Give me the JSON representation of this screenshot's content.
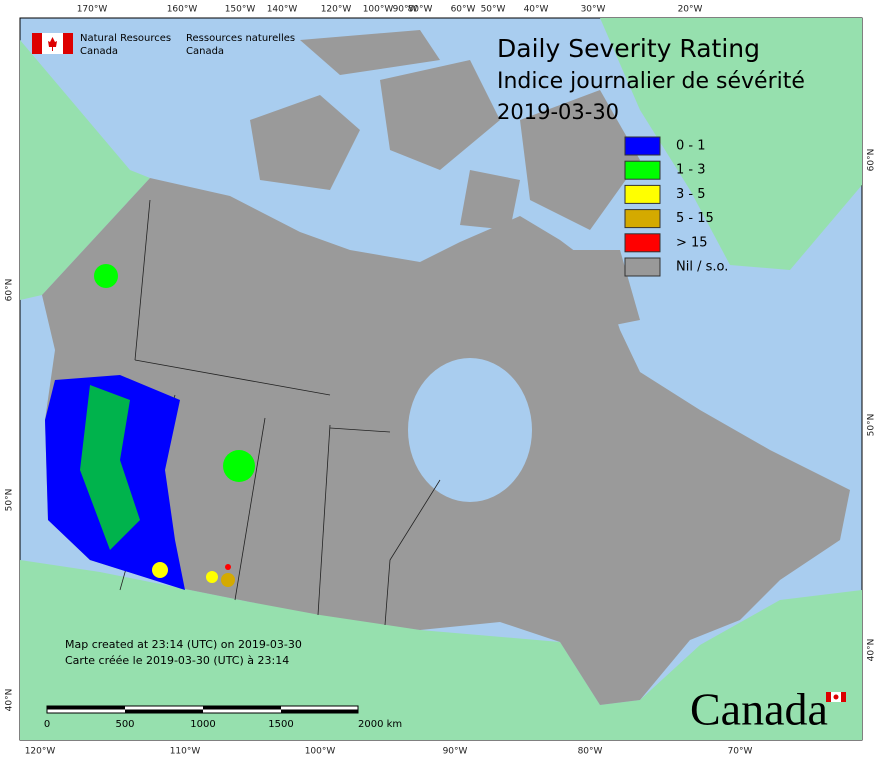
{
  "header": {
    "department_en": [
      "Natural Resources",
      "Canada"
    ],
    "department_fr": [
      "Ressources naturelles",
      "Canada"
    ],
    "title": [
      "Daily Severity Rating",
      "Indice journalier de sévérité",
      "2019-03-30"
    ]
  },
  "legend": [
    {
      "label": "0 - 1",
      "color": "#0000ff"
    },
    {
      "label": "1 - 3",
      "color": "#00ff00"
    },
    {
      "label": "3 - 5",
      "color": "#ffff00"
    },
    {
      "label": "5 - 15",
      "color": "#d4aa00"
    },
    {
      "label": "> 15",
      "color": "#ff0000"
    },
    {
      "label": "Nil / s.o.",
      "color": "#999999"
    }
  ],
  "graticule": {
    "top": [
      "170°W",
      "160°W",
      "150°W",
      "140°W",
      "120°W",
      "100°W",
      "90°W",
      "80°W",
      "60°W",
      "50°W",
      "40°W",
      "30°W",
      "20°W"
    ],
    "bottom": [
      "120°W",
      "110°W",
      "100°W",
      "90°W",
      "80°W",
      "70°W"
    ],
    "left": [
      "60°N",
      "50°N",
      "40°N"
    ],
    "right": [
      "60°N",
      "50°N",
      "40°N"
    ]
  },
  "notes": [
    "Map created at 23:14 (UTC) on 2019-03-30",
    "Carte créée le 2019-03-30 (UTC) à 23:14"
  ],
  "scale_bar": [
    "0",
    "500",
    "1000",
    "1500",
    "2000 km"
  ],
  "wordmark": "Canada"
}
